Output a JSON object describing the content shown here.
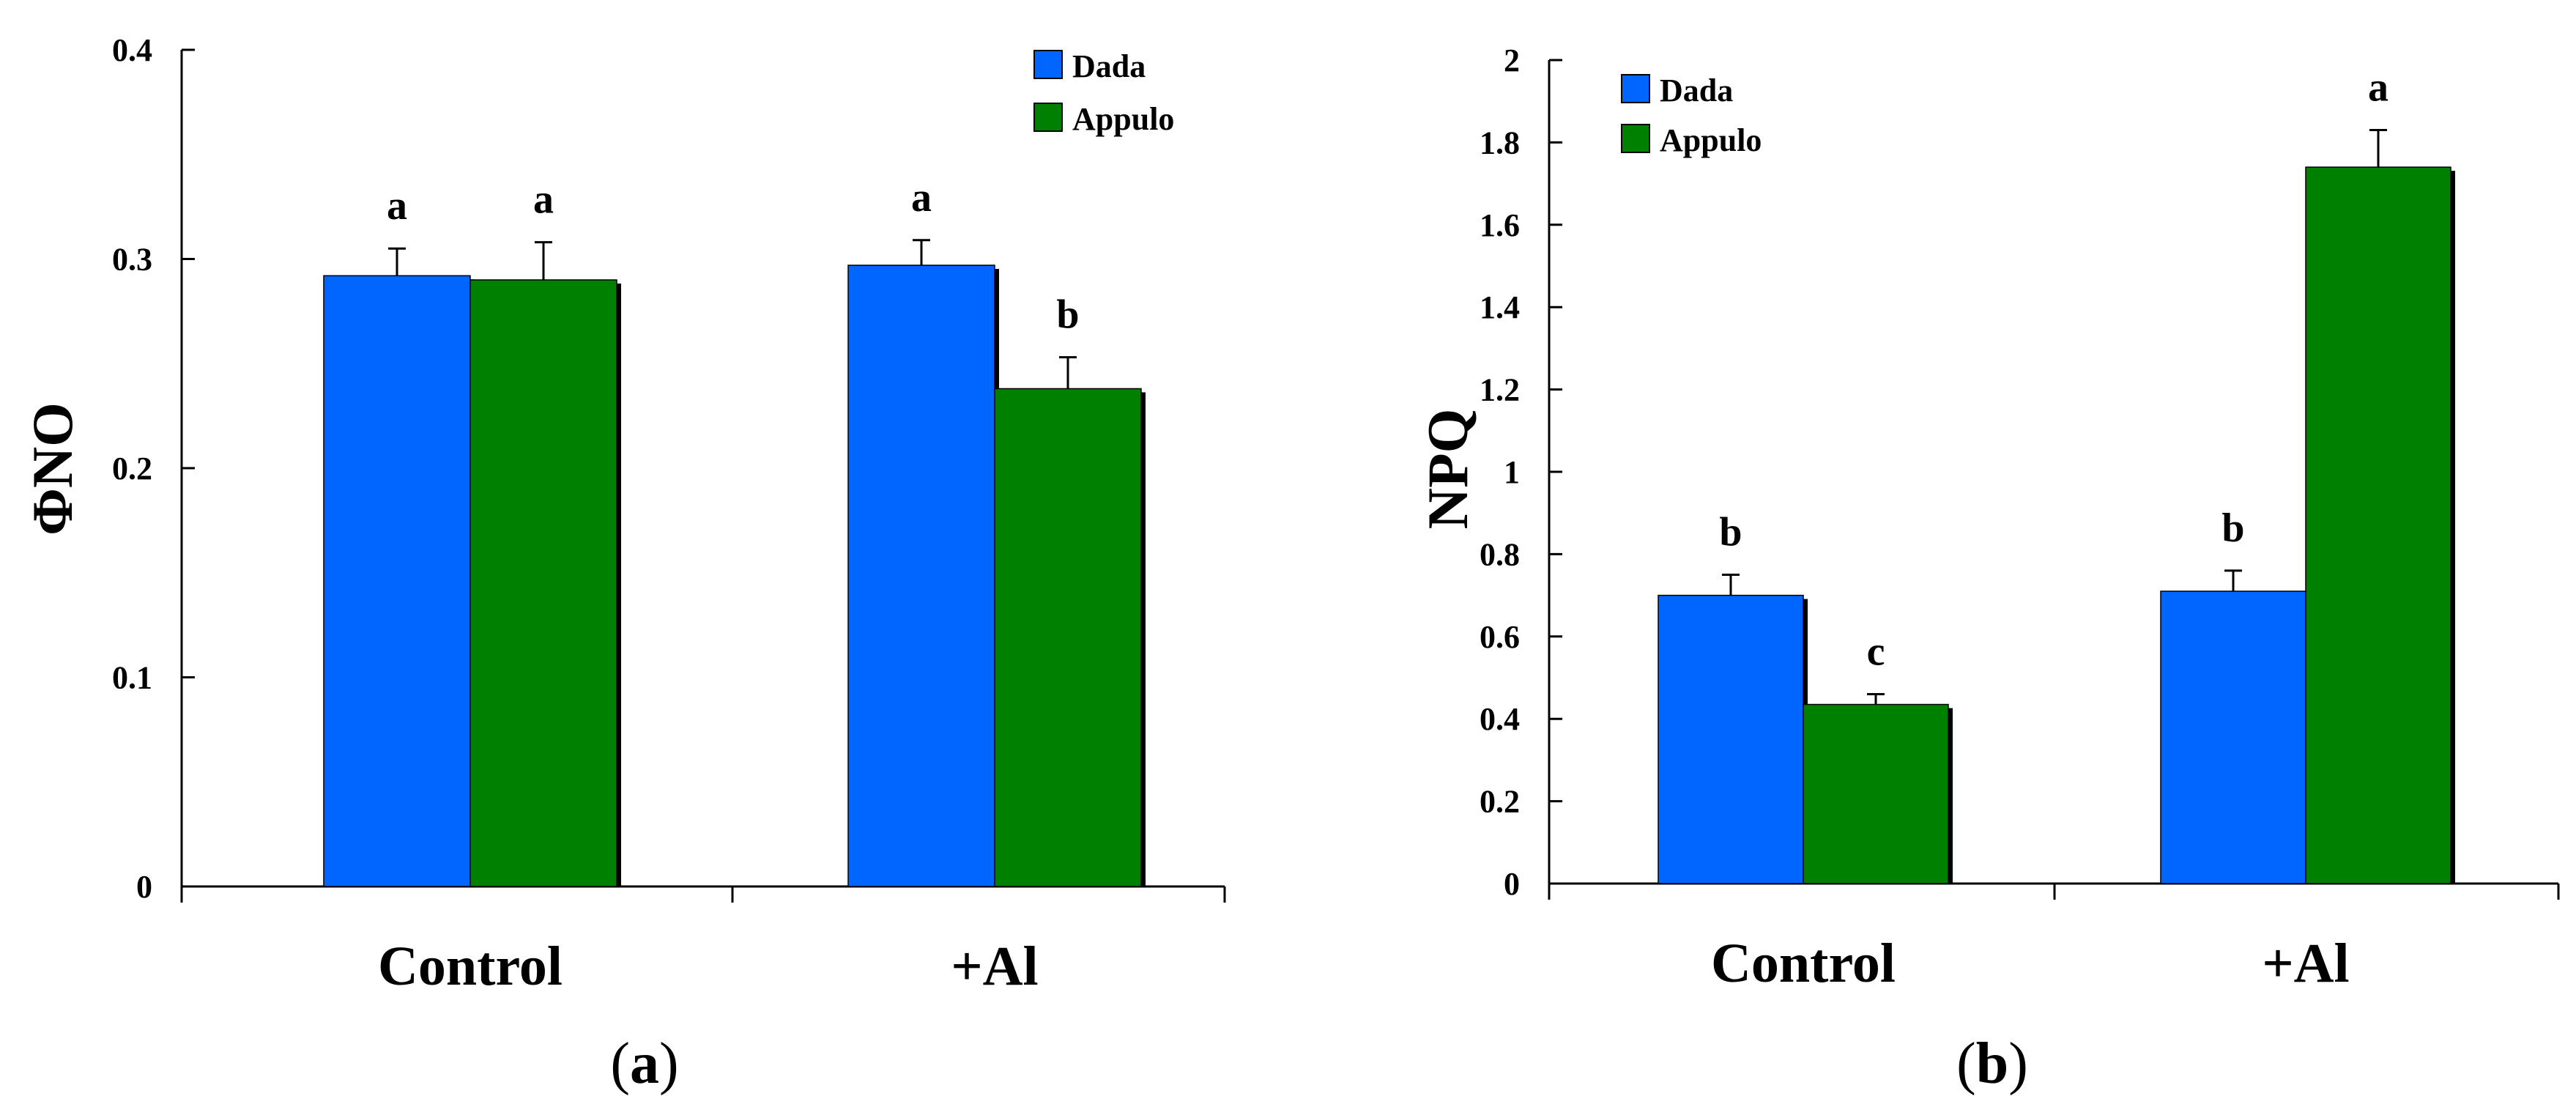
{
  "colors": {
    "Dada": "#0066ff",
    "Appulo": "#008000",
    "shadow": "#000000"
  },
  "chart_data": [
    {
      "type": "bar",
      "panel": "a",
      "panel_label": [
        "(",
        "a",
        ")"
      ],
      "ylabel": "ΦNO",
      "xlabel": "",
      "categories": [
        "Control",
        "+Al"
      ],
      "ylim": [
        0,
        0.4
      ],
      "yticks": [
        0,
        0.1,
        0.2,
        0.3,
        0.4
      ],
      "ytick_labels": [
        "0",
        "0.1",
        "0.2",
        "0.3",
        "0.4"
      ],
      "legend_position": "top-right",
      "series": [
        {
          "name": "Dada",
          "values": [
            0.292,
            0.297
          ],
          "errors": [
            0.013,
            0.012
          ],
          "letters": [
            "a",
            "a"
          ]
        },
        {
          "name": "Appulo",
          "values": [
            0.29,
            0.238
          ],
          "errors": [
            0.018,
            0.015
          ],
          "letters": [
            "a",
            "b"
          ]
        }
      ]
    },
    {
      "type": "bar",
      "panel": "b",
      "panel_label": [
        "(",
        "b",
        ")"
      ],
      "ylabel": "NPQ",
      "xlabel": "",
      "categories": [
        "Control",
        "+Al"
      ],
      "ylim": [
        0,
        2
      ],
      "yticks": [
        0,
        0.2,
        0.4,
        0.6,
        0.8,
        1,
        1.2,
        1.4,
        1.6,
        1.8,
        2
      ],
      "ytick_labels": [
        "0",
        "0.2",
        "0.4",
        "0.6",
        "0.8",
        "1",
        "1.2",
        "1.4",
        "1.6",
        "1.8",
        "2"
      ],
      "legend_position": "top-left",
      "series": [
        {
          "name": "Dada",
          "values": [
            0.7,
            0.71
          ],
          "errors": [
            0.05,
            0.05
          ],
          "letters": [
            "b",
            "b"
          ]
        },
        {
          "name": "Appulo",
          "values": [
            0.435,
            1.74
          ],
          "errors": [
            0.025,
            0.09
          ],
          "letters": [
            "c",
            "a"
          ]
        }
      ]
    }
  ]
}
